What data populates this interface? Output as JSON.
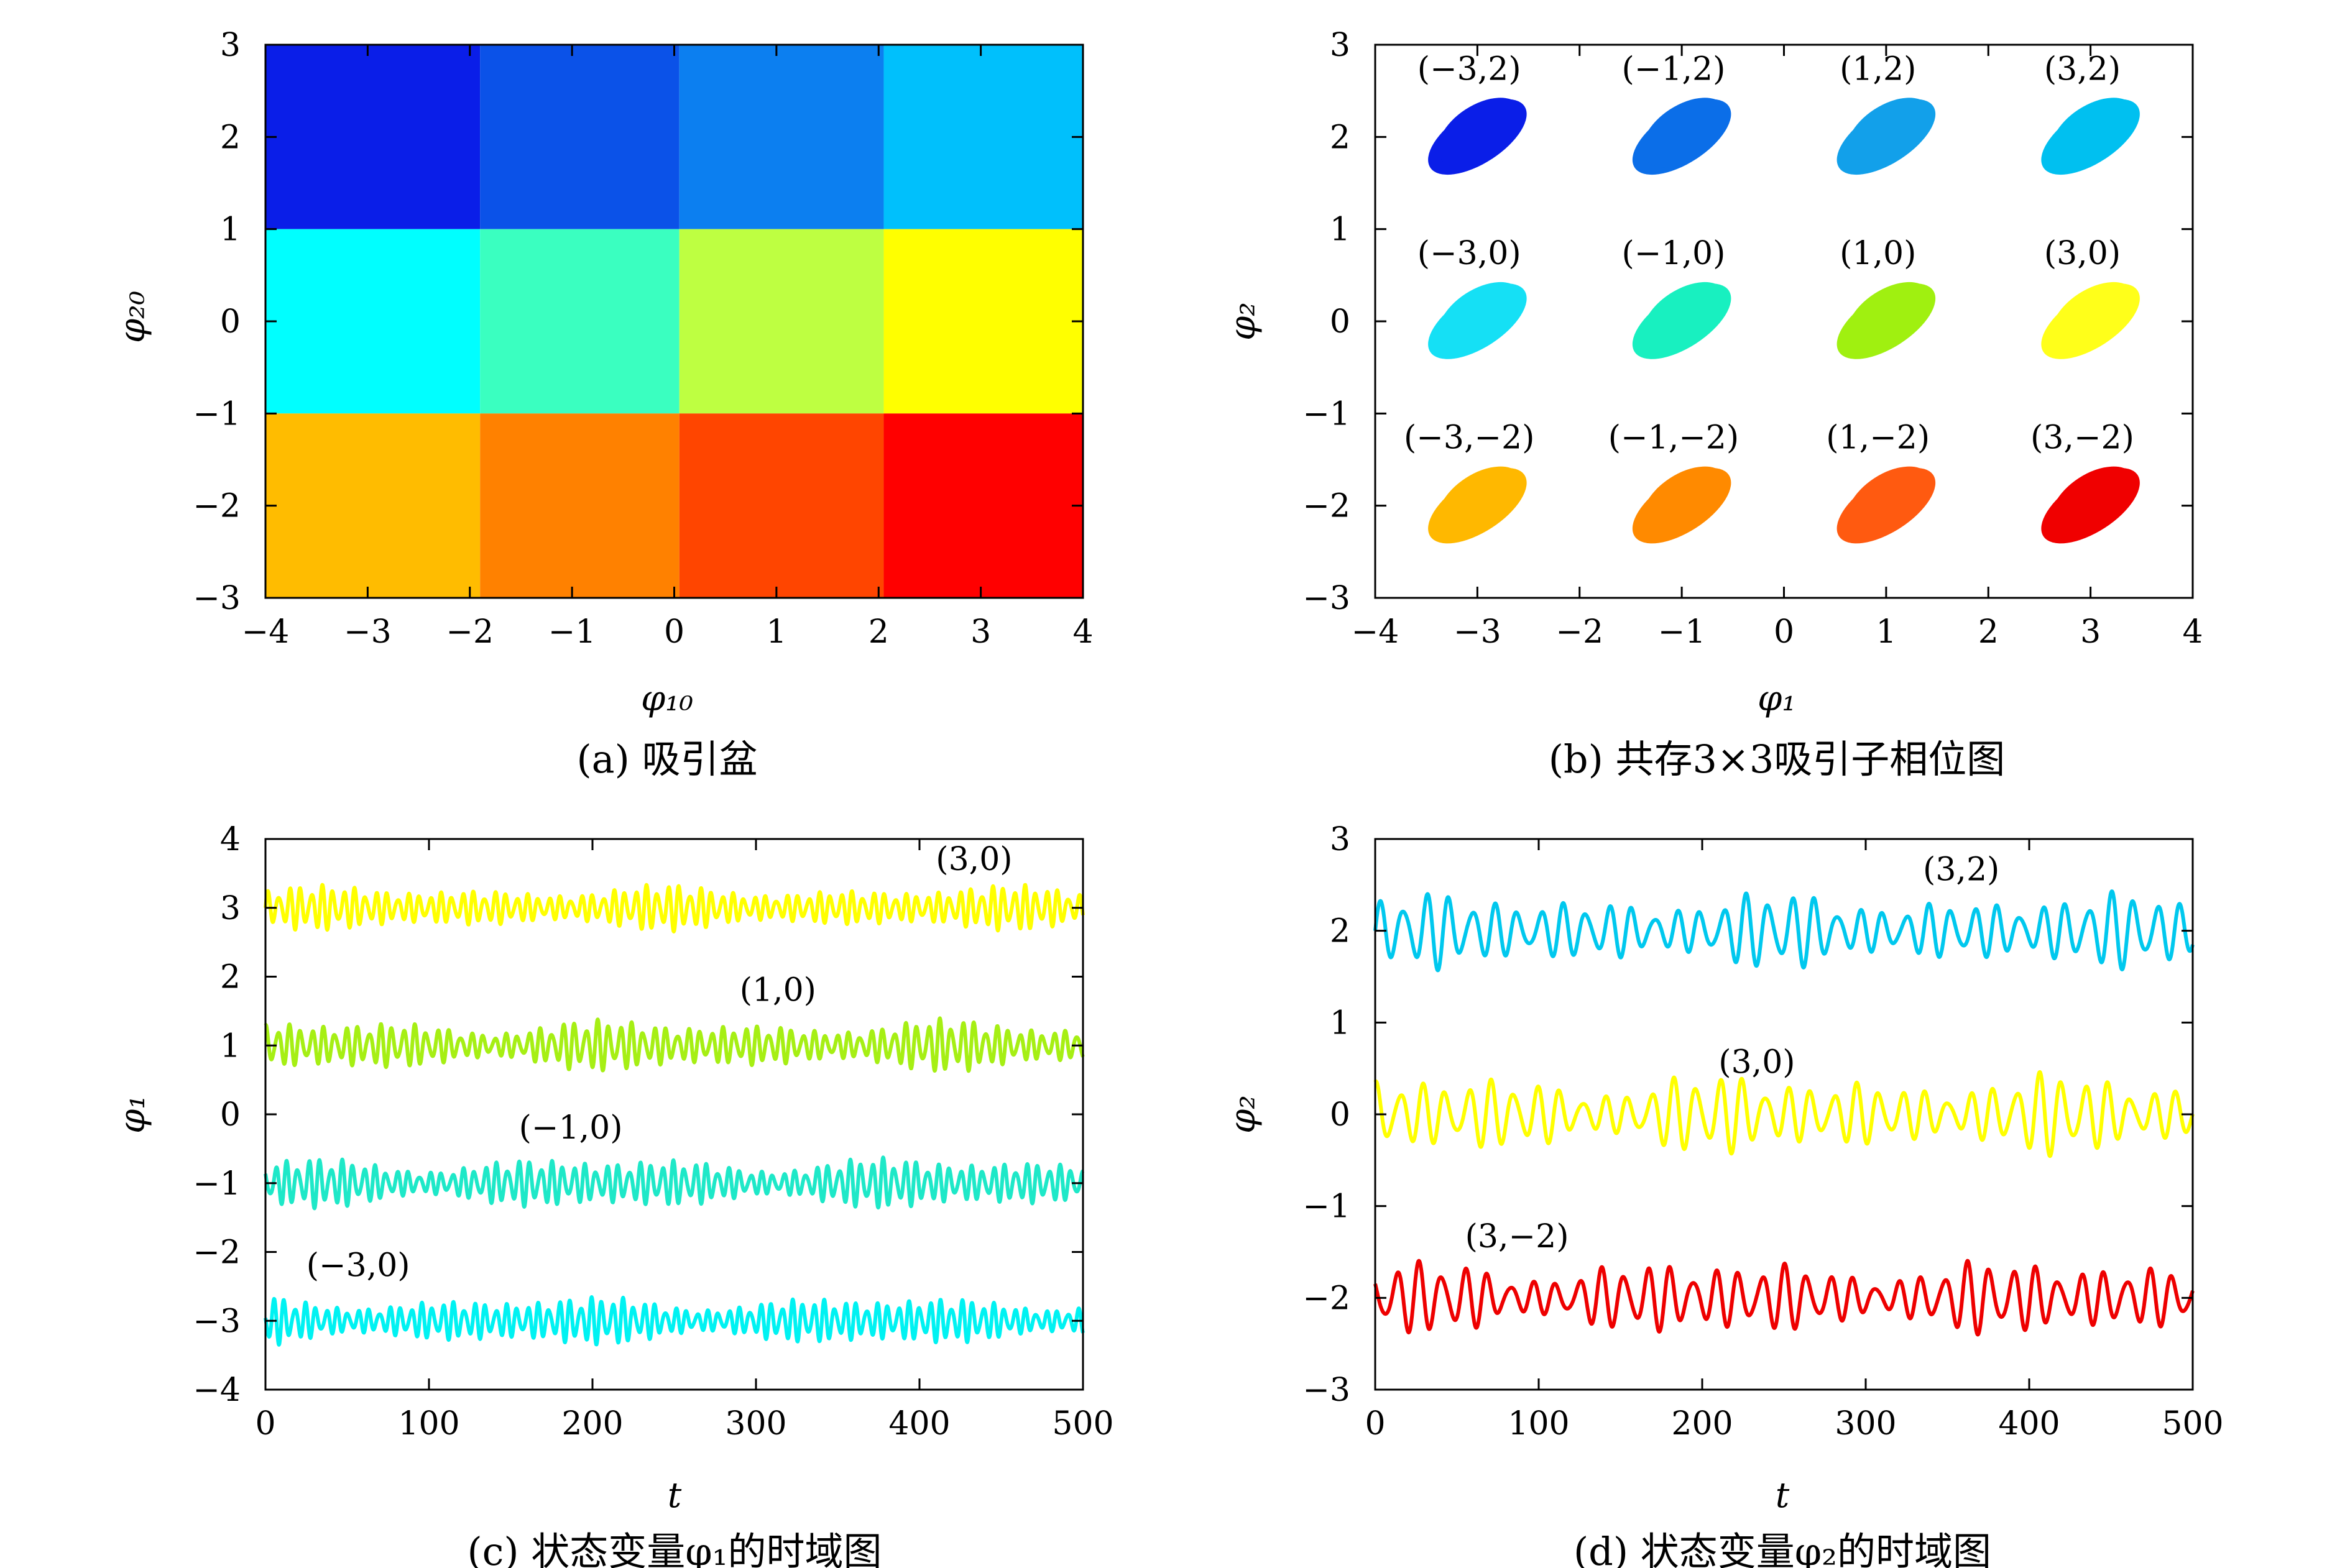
{
  "chart_data": [
    {
      "id": "a",
      "type": "heatmap",
      "caption": "(a) 吸引盆",
      "xlabel": "φ₁₀",
      "ylabel": "φ₂₀",
      "xlim": [
        -4,
        4
      ],
      "ylim": [
        -3,
        3
      ],
      "xticks": [
        "−4",
        "−3",
        "−2",
        "−1",
        "0",
        "1",
        "2",
        "3",
        "4"
      ],
      "yticks": [
        "−3",
        "−2",
        "−1",
        "0",
        "1",
        "2",
        "3"
      ],
      "x_edges": [
        -4,
        -1.9,
        0.05,
        2.05,
        4
      ],
      "y_edges": [
        3,
        1,
        -1,
        -3
      ],
      "cells": [
        [
          "#0a1ee8",
          "#0b52e8",
          "#0c7ff0",
          "#00c0fc"
        ],
        [
          "#00ffff",
          "#3affc0",
          "#beff41",
          "#ffff00"
        ],
        [
          "#ffbc00",
          "#ff8100",
          "#ff4500",
          "#ff0000"
        ]
      ]
    },
    {
      "id": "b",
      "type": "scatter",
      "caption": "(b) 共存3×3吸引子相位图",
      "xlabel": "φ₁",
      "ylabel": "φ₂",
      "xlim": [
        -4,
        4
      ],
      "ylim": [
        -3,
        3
      ],
      "xticks": [
        "−4",
        "−3",
        "−2",
        "−1",
        "0",
        "1",
        "2",
        "3",
        "4"
      ],
      "yticks": [
        "−3",
        "−2",
        "−1",
        "0",
        "1",
        "2",
        "3"
      ],
      "grid": false,
      "attractors": [
        {
          "label": "(−3,2)",
          "cx": -3.0,
          "cy": 2.0,
          "color": "#0a1ee8"
        },
        {
          "label": "(−1,2)",
          "cx": -1.0,
          "cy": 2.0,
          "color": "#0b6ee8"
        },
        {
          "label": "(1,2)",
          "cx": 1.0,
          "cy": 2.0,
          "color": "#12a0ea"
        },
        {
          "label": "(3,2)",
          "cx": 3.0,
          "cy": 2.0,
          "color": "#00c0f0"
        },
        {
          "label": "(−3,0)",
          "cx": -3.0,
          "cy": 0.0,
          "color": "#15e0f5"
        },
        {
          "label": "(−1,0)",
          "cx": -1.0,
          "cy": 0.0,
          "color": "#18f0c0"
        },
        {
          "label": "(1,0)",
          "cx": 1.0,
          "cy": 0.0,
          "color": "#a0f010"
        },
        {
          "label": "(3,0)",
          "cx": 3.0,
          "cy": 0.0,
          "color": "#ffff1a"
        },
        {
          "label": "(−3,−2)",
          "cx": -3.0,
          "cy": -2.0,
          "color": "#ffb800"
        },
        {
          "label": "(−1,−2)",
          "cx": -1.0,
          "cy": -2.0,
          "color": "#ff8a00"
        },
        {
          "label": "(1,−2)",
          "cx": 1.0,
          "cy": -2.0,
          "color": "#ff5a10"
        },
        {
          "label": "(3,−2)",
          "cx": 3.0,
          "cy": -2.0,
          "color": "#f00000"
        }
      ]
    },
    {
      "id": "c",
      "type": "line",
      "caption": "(c) 状态变量φ₁的时域图",
      "xlabel": "t",
      "ylabel": "φ₁",
      "xlim": [
        0,
        500
      ],
      "ylim": [
        -4,
        4
      ],
      "xticks": [
        "0",
        "100",
        "200",
        "300",
        "400",
        "500"
      ],
      "yticks": [
        "−4",
        "−3",
        "−2",
        "−1",
        "0",
        "1",
        "2",
        "3",
        "4"
      ],
      "series": [
        {
          "name": "(3,0)",
          "center": 3,
          "amplitude": 0.35,
          "color": "#ffff00",
          "label_t": 410,
          "label_v": 3.55,
          "freq": 0.95
        },
        {
          "name": "(1,0)",
          "center": 1,
          "amplitude": 0.4,
          "color": "#a6ef14",
          "label_t": 290,
          "label_v": 1.65,
          "freq": 0.9
        },
        {
          "name": "(−1,0)",
          "center": -1,
          "amplitude": 0.4,
          "color": "#1ee8c8",
          "label_t": 155,
          "label_v": -0.35,
          "freq": 0.93
        },
        {
          "name": "(−3,0)",
          "center": -3,
          "amplitude": 0.38,
          "color": "#00f2f2",
          "label_t": 25,
          "label_v": -2.35,
          "freq": 0.97
        }
      ]
    },
    {
      "id": "d",
      "type": "line",
      "caption": "(d) 状态变量φ₂的时域图",
      "xlabel": "t",
      "ylabel": "φ₂",
      "xlim": [
        0,
        500
      ],
      "ylim": [
        -3,
        3
      ],
      "xticks": [
        "0",
        "100",
        "200",
        "300",
        "400",
        "500"
      ],
      "yticks": [
        "−3",
        "−2",
        "−1",
        "0",
        "1",
        "2",
        "3"
      ],
      "series": [
        {
          "name": "(3,2)",
          "center": 2,
          "amplitude": 0.45,
          "color": "#00c8ee",
          "label_t": 335,
          "label_v": 2.55,
          "freq": 0.45
        },
        {
          "name": "(3,0)",
          "center": 0,
          "amplitude": 0.48,
          "color": "#ffff00",
          "label_t": 210,
          "label_v": 0.45,
          "freq": 0.45
        },
        {
          "name": "(3,−2)",
          "center": -2,
          "amplitude": 0.45,
          "color": "#ee0000",
          "label_t": 55,
          "label_v": -1.45,
          "freq": 0.45
        }
      ]
    }
  ]
}
